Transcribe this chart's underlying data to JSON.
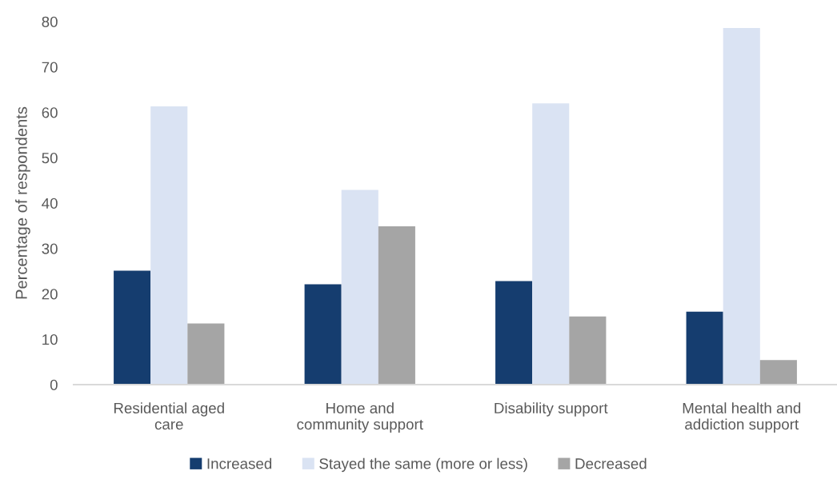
{
  "chart_data": {
    "type": "bar",
    "ylabel": "Percentage of respondents",
    "categories": [
      "Residential aged\ncare",
      "Home and\ncommunity support",
      "Disability support",
      "Mental health and\naddiction support"
    ],
    "series": [
      {
        "name": "Increased",
        "color": "#153d6f",
        "values": [
          25.1,
          22.1,
          22.8,
          16.1
        ]
      },
      {
        "name": "Stayed the same (more or less)",
        "color": "#dae3f3",
        "values": [
          61.3,
          42.9,
          62.0,
          78.6
        ]
      },
      {
        "name": "Decreased",
        "color": "#a5a5a5",
        "values": [
          13.5,
          34.9,
          15.0,
          5.4
        ]
      }
    ],
    "ylim": [
      0,
      80
    ],
    "yticks": [
      0,
      10,
      20,
      30,
      40,
      50,
      60,
      70,
      80
    ],
    "grid": false,
    "legend": "bottom"
  }
}
